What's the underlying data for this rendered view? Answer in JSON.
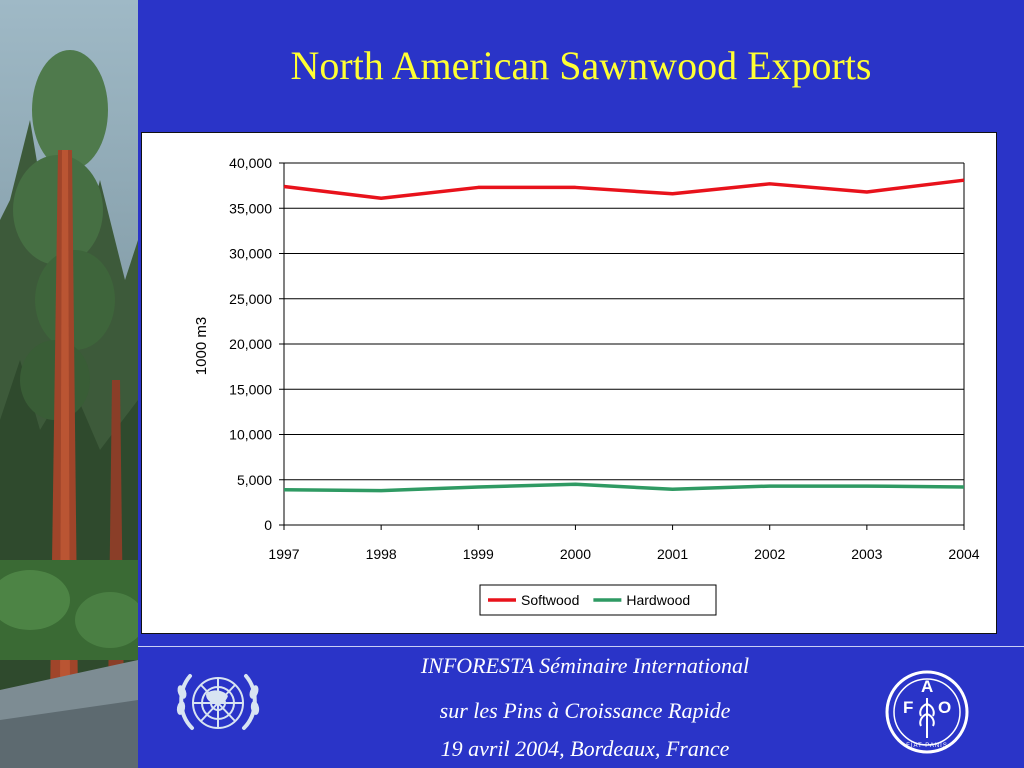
{
  "slide": {
    "title": "North American Sawnwood Exports",
    "footer_line1": "INFORESTA Séminaire International",
    "footer_line2": "sur les Pins à Croissance Rapide",
    "footer_line3": "19 avril 2004, Bordeaux, France",
    "logos": [
      "un-emblem",
      "fao-emblem"
    ],
    "fao_letters": [
      "F",
      "A",
      "O"
    ],
    "fao_motto": "FIAT PANIS"
  },
  "colors": {
    "background": "#2a34c8",
    "title": "#ffff33",
    "softwood": "#e8121b",
    "hardwood": "#2f9a63"
  },
  "chart_data": {
    "type": "line",
    "title": "",
    "xlabel": "",
    "ylabel": "1000 m3",
    "ylim": [
      0,
      40000
    ],
    "yticks": [
      "0",
      "5,000",
      "10,000",
      "15,000",
      "20,000",
      "25,000",
      "30,000",
      "35,000",
      "40,000"
    ],
    "x": [
      "1997",
      "1998",
      "1999",
      "2000",
      "2001",
      "2002",
      "2003",
      "2004"
    ],
    "series": [
      {
        "name": "Softwood",
        "color": "#e8121b",
        "values": [
          37400,
          36100,
          37300,
          37300,
          36600,
          37700,
          36800,
          38100
        ]
      },
      {
        "name": "Hardwood",
        "color": "#2f9a63",
        "values": [
          3900,
          3800,
          4200,
          4500,
          3950,
          4300,
          4300,
          4200
        ]
      }
    ],
    "grid": true,
    "legend": "bottom-center"
  }
}
